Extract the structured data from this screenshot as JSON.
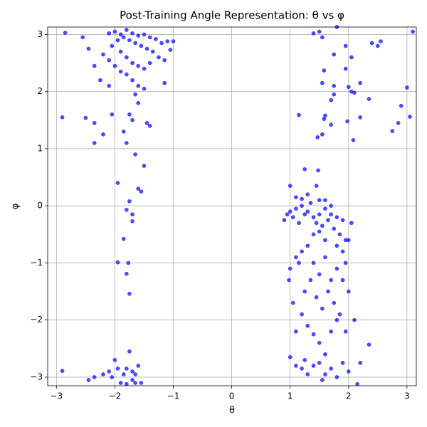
{
  "chart_data": {
    "type": "scatter",
    "title": "Post-Training Angle Representation: θ vs φ",
    "xlabel": "θ",
    "ylabel": "φ",
    "color": "#0000ff",
    "grid": true,
    "xlim": [
      -3.15,
      3.16
    ],
    "ylim": [
      -3.15,
      3.13
    ],
    "xticks": [
      {
        "value": -3,
        "label": "−3"
      },
      {
        "value": -2,
        "label": "−2"
      },
      {
        "value": -1,
        "label": "−1"
      },
      0,
      1,
      2,
      3
    ],
    "yticks": [
      {
        "value": -3,
        "label": "−3"
      },
      {
        "value": -2,
        "label": "−2"
      },
      {
        "value": -1,
        "label": "−1"
      },
      0,
      1,
      2,
      3
    ],
    "x": [
      -2.0,
      -1.9,
      -1.8,
      -1.7,
      -1.6,
      -1.5,
      -1.4,
      -1.3,
      -1.2,
      -1.1,
      -2.1,
      -1.95,
      -1.85,
      -1.75,
      -1.65,
      -1.55,
      -1.45,
      -1.35,
      -1.25,
      -1.15,
      -2.05,
      -1.9,
      -1.8,
      -1.7,
      -1.6,
      -1.5,
      -1.4,
      -2.2,
      -2.1,
      -2.0,
      -1.9,
      -1.8,
      -1.7,
      -1.6,
      -1.5,
      -2.1,
      -2.25,
      -2.35,
      -2.45,
      -2.55,
      -2.85,
      -1.65,
      -1.6,
      -1.75,
      -1.7,
      -1.85,
      -1.8,
      -1.65,
      -1.5,
      -1.95,
      -1.6,
      -1.55,
      -1.75,
      -1.8,
      -1.7,
      -1.7,
      -1.85,
      -1.95,
      -1.77,
      -1.8,
      -1.75,
      -2.9,
      -2.5,
      -2.35,
      -2.35,
      -2.2,
      -2.05,
      -1.4,
      -1.45,
      -1.15,
      -1.05,
      -1.0,
      -2.9,
      -2.45,
      -2.35,
      -2.2,
      -2.1,
      -2.0,
      -1.95,
      -1.85,
      -1.8,
      -1.75,
      -1.7,
      -1.65,
      -1.6,
      -1.55,
      -1.9,
      -1.8,
      -2.05,
      -1.7,
      -1.65,
      1.0,
      1.1,
      1.2,
      1.3,
      1.4,
      1.5,
      1.6,
      1.7,
      1.8,
      1.9,
      1.05,
      1.15,
      1.25,
      1.35,
      1.45,
      1.55,
      1.65,
      1.75,
      1.85,
      1.95,
      0.95,
      0.9,
      1.0,
      1.2,
      1.3,
      1.5,
      1.6,
      1.45,
      1.25,
      1.48,
      1.1,
      1.7,
      1.5,
      1.4,
      1.6,
      1.8,
      1.9,
      2.0,
      1.95,
      2.05,
      1.3,
      1.2,
      1.1,
      1.0,
      1.15,
      1.4,
      1.5,
      1.6,
      1.7,
      1.8,
      1.9,
      2.0,
      1.35,
      1.25,
      1.45,
      1.55,
      1.65,
      1.75,
      1.85,
      1.05,
      0.98,
      1.2,
      1.3,
      1.1,
      1.4,
      1.5,
      1.6,
      1.7,
      1.8,
      1.95,
      2.1,
      1.0,
      1.1,
      1.2,
      1.3,
      1.4,
      1.5,
      1.6,
      1.7,
      1.8,
      1.9,
      2.0,
      2.2,
      2.35,
      2.15,
      1.25,
      1.55,
      1.4,
      1.5,
      1.8,
      1.75,
      1.95,
      2.05,
      2.2,
      2.4,
      2.5,
      2.55,
      3.1,
      1.58,
      1.55,
      1.75,
      1.7,
      1.75,
      2.05,
      2.1,
      2.0,
      1.95,
      2.35,
      2.2,
      1.15,
      1.6,
      1.58,
      1.7,
      1.98,
      1.47,
      1.55,
      2.08,
      2.75,
      2.85,
      2.9,
      3.0,
      3.05,
      1.55
    ],
    "y": [
      3.05,
      3.0,
      3.08,
      3.02,
      2.98,
      3.0,
      2.95,
      2.92,
      2.85,
      2.88,
      3.02,
      2.9,
      2.95,
      2.9,
      2.85,
      2.8,
      2.75,
      2.7,
      2.6,
      2.55,
      2.8,
      2.7,
      2.6,
      2.5,
      2.45,
      2.4,
      2.5,
      2.65,
      2.55,
      2.45,
      2.35,
      2.3,
      2.2,
      2.1,
      2.05,
      2.1,
      2.2,
      2.45,
      2.75,
      2.95,
      3.03,
      1.95,
      1.8,
      1.6,
      1.5,
      1.3,
      1.1,
      0.9,
      0.7,
      0.4,
      0.3,
      0.25,
      0.08,
      -0.07,
      -0.15,
      -0.27,
      -0.58,
      -0.99,
      -1.0,
      -1.19,
      -1.54,
      1.55,
      1.54,
      1.45,
      1.1,
      1.25,
      1.6,
      1.4,
      1.45,
      2.15,
      2.73,
      2.88,
      -2.89,
      -3.05,
      -3.0,
      -2.95,
      -2.9,
      -2.7,
      -2.85,
      -2.95,
      -2.85,
      -2.55,
      -2.9,
      -2.95,
      -2.8,
      -3.1,
      -3.1,
      -3.12,
      -3.0,
      -3.05,
      -3.1,
      -0.1,
      -0.05,
      0.0,
      -0.1,
      -0.2,
      -0.15,
      -0.05,
      0.0,
      -0.2,
      -0.25,
      -0.2,
      -0.3,
      -0.15,
      0.05,
      -0.3,
      -0.35,
      -0.25,
      -0.4,
      -0.5,
      -0.6,
      -0.15,
      -0.25,
      0.35,
      0.12,
      0.2,
      0.1,
      0.1,
      0.35,
      0.64,
      0.62,
      0.15,
      -0.15,
      -0.45,
      -0.5,
      -0.6,
      -0.7,
      -0.8,
      -0.6,
      -1.0,
      -0.3,
      -0.7,
      -0.8,
      -0.9,
      -1.1,
      -1.0,
      -1.0,
      -1.2,
      -0.9,
      -1.3,
      -1.1,
      -1.3,
      -1.5,
      -1.3,
      -1.5,
      -1.6,
      -1.8,
      -1.5,
      -1.7,
      -1.9,
      -1.7,
      -1.3,
      -1.9,
      -2.1,
      -2.2,
      -2.25,
      -2.4,
      -2.6,
      -2.2,
      -2.0,
      -2.2,
      -2.0,
      -2.65,
      -2.8,
      -2.85,
      -2.95,
      -2.8,
      -2.75,
      -2.95,
      -2.85,
      -3.0,
      -2.75,
      -2.9,
      -2.75,
      -2.43,
      -3.12,
      -2.7,
      -3.05,
      3.02,
      3.05,
      3.13,
      2.65,
      2.8,
      2.6,
      2.15,
      2.85,
      2.8,
      2.88,
      3.05,
      2.37,
      2.15,
      2.1,
      1.85,
      1.95,
      2.0,
      1.98,
      2.08,
      2.4,
      1.87,
      1.55,
      1.59,
      1.58,
      1.52,
      1.42,
      1.48,
      1.2,
      1.25,
      1.15,
      1.31,
      1.45,
      1.75,
      2.07,
      1.56,
      2.95
    ]
  }
}
